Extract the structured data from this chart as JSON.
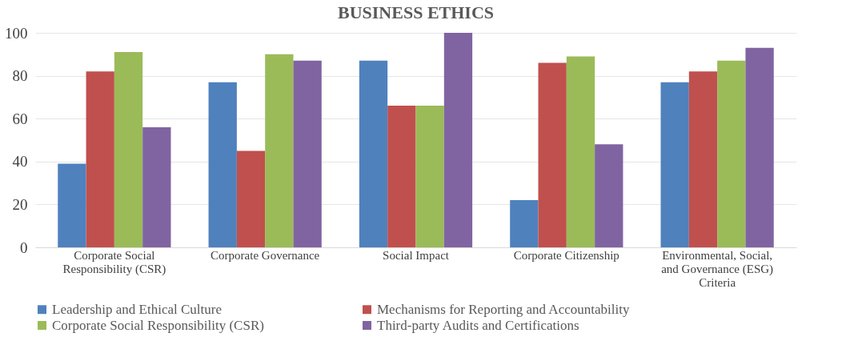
{
  "chart_data": {
    "type": "bar",
    "title": "BUSINESS ETHICS",
    "categories": [
      "Corporate Social Responsibility (CSR)",
      "Corporate Governance",
      "Social Impact",
      "Corporate Citizenship",
      "Environmental, Social, and Governance (ESG) Criteria"
    ],
    "series": [
      {
        "name": "Leadership and Ethical Culture",
        "color": "#4f81bd",
        "values": [
          39,
          77,
          87,
          22,
          77
        ]
      },
      {
        "name": "Mechanisms for Reporting and Accountability",
        "color": "#c0504d",
        "values": [
          82,
          45,
          66,
          86,
          82
        ]
      },
      {
        "name": "Corporate Social Responsibility (CSR)",
        "color": "#9bbb59",
        "values": [
          91,
          90,
          66,
          89,
          87
        ]
      },
      {
        "name": "Third-party Audits and Certifications",
        "color": "#8064a2",
        "values": [
          56,
          87,
          100,
          48,
          93
        ]
      }
    ],
    "ylim": [
      0,
      100
    ],
    "yticks": [
      0,
      20,
      40,
      60,
      80,
      100
    ],
    "grid": "y",
    "legend": "bottom"
  }
}
